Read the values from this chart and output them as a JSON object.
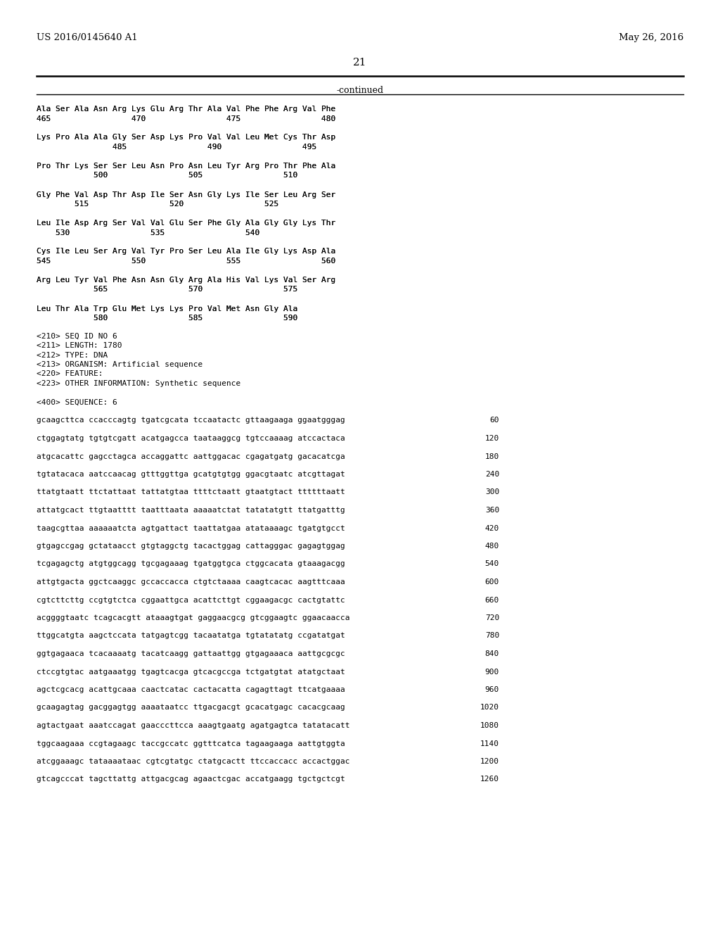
{
  "header_left": "US 2016/0145640 A1",
  "header_right": "May 26, 2016",
  "page_number": "21",
  "continued_label": "-continued",
  "bg_color": "#ffffff",
  "text_color": "#000000",
  "protein_lines": [
    [
      "Ala Ser Ala Asn Arg Lys Glu Arg Thr Ala Val Phe Phe Arg Val Phe",
      ""
    ],
    [
      "465                 470                 475                 480",
      ""
    ],
    [
      "",
      ""
    ],
    [
      "Lys Pro Ala Ala Gly Ser Asp Lys Pro Val Val Leu Met Cys Thr Asp",
      ""
    ],
    [
      "                485                 490                 495",
      ""
    ],
    [
      "",
      ""
    ],
    [
      "Pro Thr Lys Ser Ser Leu Asn Pro Asn Leu Tyr Arg Pro Thr Phe Ala",
      ""
    ],
    [
      "            500                 505                 510",
      ""
    ],
    [
      "",
      ""
    ],
    [
      "Gly Phe Val Asp Thr Asp Ile Ser Asn Gly Lys Ile Ser Leu Arg Ser",
      ""
    ],
    [
      "        515                 520                 525",
      ""
    ],
    [
      "",
      ""
    ],
    [
      "Leu Ile Asp Arg Ser Val Val Glu Ser Phe Gly Ala Gly Gly Lys Thr",
      ""
    ],
    [
      "    530                 535                 540",
      ""
    ],
    [
      "",
      ""
    ],
    [
      "Cys Ile Leu Ser Arg Val Tyr Pro Ser Leu Ala Ile Gly Lys Asp Ala",
      ""
    ],
    [
      "545                 550                 555                 560",
      ""
    ],
    [
      "",
      ""
    ],
    [
      "Arg Leu Tyr Val Phe Asn Asn Gly Arg Ala His Val Lys Val Ser Arg",
      ""
    ],
    [
      "            565                 570                 575",
      ""
    ],
    [
      "",
      ""
    ],
    [
      "Leu Thr Ala Trp Glu Met Lys Lys Pro Val Met Asn Gly Ala",
      ""
    ],
    [
      "            580                 585                 590",
      ""
    ]
  ],
  "metadata_lines": [
    "<210> SEQ ID NO 6",
    "<211> LENGTH: 1780",
    "<212> TYPE: DNA",
    "<213> ORGANISM: Artificial sequence",
    "<220> FEATURE:",
    "<223> OTHER INFORMATION: Synthetic sequence",
    "",
    "<400> SEQUENCE: 6"
  ],
  "sequence_lines": [
    [
      "gcaagcttca ccacccagtg tgatcgcata tccaatactc gttaagaaga ggaatgggag",
      "60"
    ],
    [
      "ctggagtatg tgtgtcgatt acatgagcca taataaggcg tgtccaaaag atccactaca",
      "120"
    ],
    [
      "atgcacattc gagcctagca accaggattc aattggacac cgagatgatg gacacatcga",
      "180"
    ],
    [
      "tgtatacaca aatccaacag gtttggttga gcatgtgtgg ggacgtaatc atcgttagat",
      "240"
    ],
    [
      "ttatgtaatt ttctattaat tattatgtaa ttttctaatt gtaatgtact ttttttaatt",
      "300"
    ],
    [
      "attatgcact ttgtaatttt taatttaata aaaaatctat tatatatgtt ttatgatttg",
      "360"
    ],
    [
      "taagcgttaa aaaaaatcta agtgattact taattatgaa atataaaagc tgatgtgcct",
      "420"
    ],
    [
      "gtgagccgag gctataacct gtgtaggctg tacactggag cattagggac gagagtggag",
      "480"
    ],
    [
      "tcgagagctg atgtggcagg tgcgagaaag tgatggtgca ctggcacata gtaaagacgg",
      "540"
    ],
    [
      "attgtgacta ggctcaaggc gccaccacca ctgtctaaaa caagtcacac aagtttcaaa",
      "600"
    ],
    [
      "cgtcttcttg ccgtgtctca cggaattgca acattcttgt cggaagacgc cactgtattc",
      "660"
    ],
    [
      "acggggtaatc tcagcacgtt ataaagtgat gaggaacgcg gtcggaagtc ggaacaacca",
      "720"
    ],
    [
      "ttggcatgta aagctccata tatgagtcgg tacaatatga tgtatatatg ccgatatgat",
      "780"
    ],
    [
      "ggtgagaaca tcacaaaatg tacatcaagg gattaattgg gtgagaaaca aattgcgcgc",
      "840"
    ],
    [
      "ctccgtgtac aatgaaatgg tgagtcacga gtcacgccga tctgatgtat atatgctaat",
      "900"
    ],
    [
      "agctcgcacg acattgcaaa caactcatac cactacatta cagagttagt ttcatgaaaa",
      "960"
    ],
    [
      "gcaagagtag gacggagtgg aaaataatcc ttgacgacgt gcacatgagc cacacgcaag",
      "1020"
    ],
    [
      "agtactgaat aaatccagat gaacccttcca aaagtgaatg agatgagtca tatatacatt",
      "1080"
    ],
    [
      "tggcaagaaa ccgtagaagc taccgccatc ggtttcatca tagaagaaga aattgtggta",
      "1140"
    ],
    [
      "atcggaaagc tataaaataac cgtcgtatgc ctatgcactt ttccaccacc accactggac",
      "1200"
    ],
    [
      "gtcagcccat tagcttattg attgacgcag agaactcgac accatgaagg tgctgctcgt",
      "1260"
    ]
  ]
}
